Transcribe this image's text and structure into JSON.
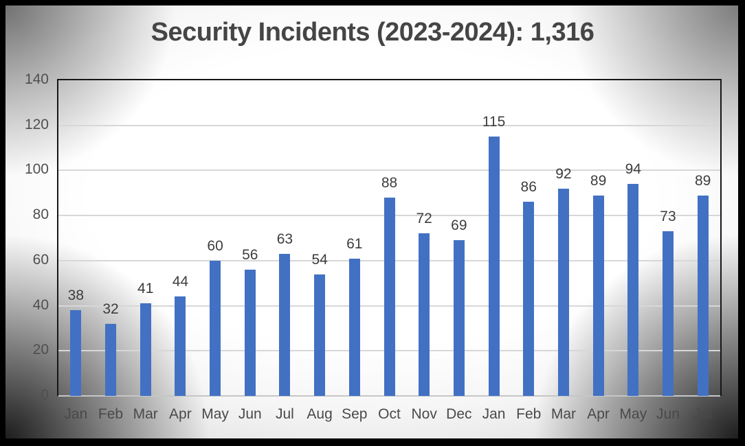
{
  "chart_data": {
    "type": "bar",
    "title": "Security Incidents (2023-2024): 1,316",
    "total": 1316,
    "categories": [
      "Jan",
      "Feb",
      "Mar",
      "Apr",
      "May",
      "Jun",
      "Jul",
      "Aug",
      "Sep",
      "Oct",
      "Nov",
      "Dec",
      "Jan",
      "Feb",
      "Mar",
      "Apr",
      "May",
      "Jun",
      "Jul"
    ],
    "values": [
      38,
      32,
      41,
      44,
      60,
      56,
      63,
      54,
      61,
      88,
      72,
      69,
      115,
      86,
      92,
      89,
      94,
      73,
      89
    ],
    "xlabel": "",
    "ylabel": "",
    "ylim": [
      0,
      140
    ],
    "yticks": [
      0,
      20,
      40,
      60,
      80,
      100,
      120,
      140
    ],
    "grid": true,
    "legend": false,
    "data_labels": true,
    "bar_color": "#4271c3",
    "gridline_color": "#d7d7d7",
    "plot_border_color": "#161616",
    "title_color": "#454545",
    "label_color": "#3d3d3d"
  }
}
